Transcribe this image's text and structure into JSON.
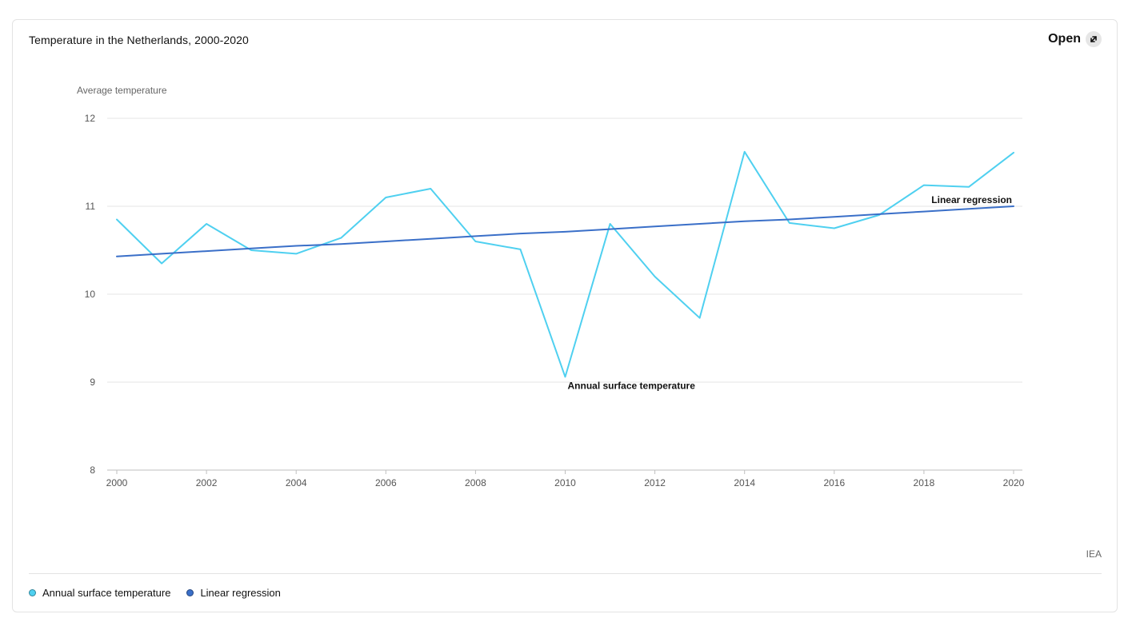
{
  "header": {
    "title": "Temperature in the Netherlands, 2000-2020",
    "open_label": "Open"
  },
  "icons": {
    "open": "external-link-arrow-icon"
  },
  "source": "IEA",
  "colors": {
    "annual": "#4fd0f0",
    "regression": "#3a6fc8",
    "grid": "#e6e6e6",
    "axis": "#bfbfbf",
    "tick_text": "#555555"
  },
  "chart_data": {
    "type": "line",
    "title": "Temperature in the Netherlands, 2000-2020",
    "xlabel": "",
    "ylabel": "Average temperature",
    "xlim": [
      2000,
      2020
    ],
    "ylim": [
      8,
      12
    ],
    "x_ticks": [
      "2000",
      "2002",
      "2004",
      "2006",
      "2008",
      "2010",
      "2012",
      "2014",
      "2016",
      "2018",
      "2020"
    ],
    "y_ticks": [
      "8",
      "9",
      "10",
      "11",
      "12"
    ],
    "grid": true,
    "legend_position": "bottom-left",
    "x": [
      2000,
      2001,
      2002,
      2003,
      2004,
      2005,
      2006,
      2007,
      2008,
      2009,
      2010,
      2011,
      2012,
      2013,
      2014,
      2015,
      2016,
      2017,
      2018,
      2019,
      2020
    ],
    "series": [
      {
        "name": "Annual surface temperature",
        "color": "#4fd0f0",
        "values": [
          10.85,
          10.35,
          10.8,
          10.5,
          10.46,
          10.64,
          11.1,
          11.2,
          10.6,
          10.51,
          9.06,
          10.8,
          10.2,
          9.73,
          11.62,
          10.81,
          10.75,
          10.9,
          11.24,
          11.22,
          11.61
        ],
        "label": "Annual surface temperature"
      },
      {
        "name": "Linear regression",
        "color": "#3a6fc8",
        "values": [
          10.43,
          10.46,
          10.49,
          10.52,
          10.55,
          10.57,
          10.6,
          10.63,
          10.66,
          10.69,
          10.71,
          10.74,
          10.77,
          10.8,
          10.83,
          10.85,
          10.88,
          10.91,
          10.94,
          10.97,
          11.0
        ],
        "label": "Linear regression"
      }
    ],
    "legend": [
      "Annual surface temperature",
      "Linear regression"
    ]
  }
}
